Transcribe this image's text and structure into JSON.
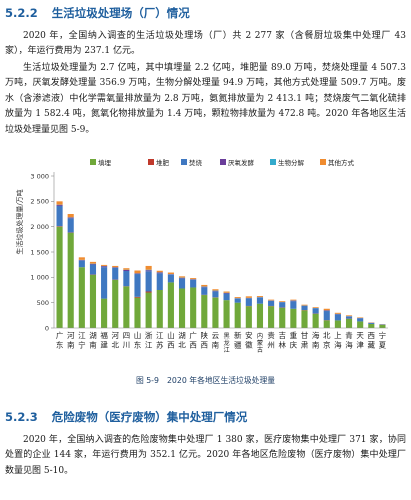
{
  "section1": {
    "number": "5.2.2",
    "title": "生活垃圾处理场（厂）情况",
    "paragraphs": [
      "2020 年，全国纳入调查的生活垃圾处理场（厂）共 2 277 家（含餐厨垃圾集中处理厂 43 家），年运行费用为 237.1 亿元。",
      "生活垃圾处理量为 2.7 亿吨，其中填埋量 2.2 亿吨，堆肥量 89.0 万吨，焚烧处理量 4 507.3 万吨，厌氧发酵处理量 356.9 万吨，生物分解处理量 94.9 万吨，其他方式处理量 509.7 万吨。废水（含渗滤液）中化学需氧量排放量为 2.8 万吨，氨氮排放量为 2 413.1 吨；焚烧废气二氧化硫排放量为 1 582.4 吨，氮氧化物排放量为 1.4 万吨，颗粒物排放量为 472.8 吨。2020 年各地区生活垃圾处理量见图 5-9。"
    ]
  },
  "figure": {
    "number": "图 5-9",
    "caption": "2020 年各地区生活垃圾处理量"
  },
  "chart_data": {
    "type": "bar",
    "stacked": true,
    "ylabel": "生活垃圾处理量/万吨",
    "ylim": [
      0,
      3000
    ],
    "yticks": [
      0,
      500,
      1000,
      1500,
      2000,
      2500,
      3000
    ],
    "grid": false,
    "legend_position": "top",
    "categories": [
      "广东",
      "河南",
      "江宁",
      "湖南",
      "福建",
      "河北",
      "四川",
      "山东",
      "浙江",
      "江苏",
      "山西",
      "湖北",
      "广西",
      "陕西",
      "云南",
      "黑龙江",
      "新疆",
      "安徽",
      "内蒙古",
      "贵州",
      "吉林",
      "重庆",
      "甘肃",
      "海南",
      "北京",
      "上海",
      "青海",
      "天津",
      "西藏",
      "宁夏"
    ],
    "series": [
      {
        "name": "填埋",
        "color": "#70a83a",
        "values": [
          2000,
          1880,
          1200,
          1050,
          580,
          950,
          820,
          600,
          700,
          750,
          900,
          780,
          800,
          650,
          600,
          550,
          500,
          430,
          480,
          430,
          400,
          380,
          350,
          280,
          150,
          150,
          180,
          130,
          80,
          60
        ]
      },
      {
        "name": "堆肥",
        "color": "#c0392b",
        "values": [
          10,
          5,
          0,
          5,
          0,
          5,
          5,
          15,
          20,
          0,
          0,
          0,
          0,
          5,
          5,
          0,
          0,
          5,
          0,
          5,
          5,
          0,
          5,
          5,
          5,
          0,
          5,
          0,
          0,
          0
        ]
      },
      {
        "name": "焚烧",
        "color": "#3f78c1",
        "values": [
          400,
          280,
          130,
          200,
          620,
          230,
          300,
          450,
          400,
          330,
          150,
          200,
          150,
          150,
          120,
          130,
          80,
          150,
          120,
          100,
          100,
          150,
          80,
          100,
          180,
          120,
          40,
          60,
          20,
          10
        ]
      },
      {
        "name": "厌氧发酵",
        "color": "#6a3d9a",
        "values": [
          20,
          15,
          10,
          10,
          20,
          10,
          20,
          10,
          20,
          15,
          10,
          10,
          10,
          10,
          10,
          10,
          5,
          5,
          5,
          5,
          5,
          10,
          5,
          5,
          10,
          5,
          5,
          5,
          5,
          0
        ]
      },
      {
        "name": "生物分解",
        "color": "#33aacc",
        "values": [
          5,
          5,
          5,
          5,
          5,
          5,
          5,
          5,
          10,
          5,
          5,
          5,
          5,
          5,
          5,
          5,
          5,
          5,
          5,
          5,
          5,
          5,
          5,
          5,
          5,
          5,
          5,
          5,
          0,
          0
        ]
      },
      {
        "name": "其他方式",
        "color": "#f08c30",
        "values": [
          65,
          65,
          50,
          35,
          20,
          25,
          30,
          55,
          75,
          30,
          30,
          25,
          20,
          30,
          25,
          25,
          20,
          30,
          20,
          15,
          15,
          15,
          15,
          15,
          30,
          20,
          15,
          10,
          5,
          5
        ]
      }
    ]
  },
  "section2": {
    "number": "5.2.3",
    "title": "危险废物（医疗废物）集中处理厂情况",
    "paragraphs": [
      "2020 年，全国纳入调查的危险废物集中处理厂 1 380 家，医疗废物集中处理厂 371 家，协同处置的企业 144 家，年运行费用为 352.1 亿元。2020 年各地区危险废物（医疗废物）集中处理厂数量见图 5-10。"
    ]
  }
}
